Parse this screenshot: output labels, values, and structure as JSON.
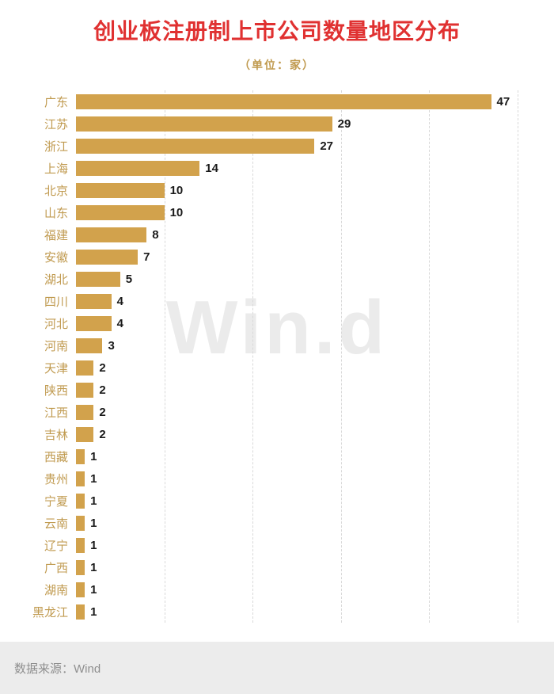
{
  "chart_data": {
    "type": "bar",
    "orientation": "horizontal",
    "title": "创业板注册制上市公司数量地区分布",
    "subtitle": "（单位：家）",
    "categories": [
      "广东",
      "江苏",
      "浙江",
      "上海",
      "北京",
      "山东",
      "福建",
      "安徽",
      "湖北",
      "四川",
      "河北",
      "河南",
      "天津",
      "陕西",
      "江西",
      "吉林",
      "西藏",
      "贵州",
      "宁夏",
      "云南",
      "辽宁",
      "广西",
      "湖南",
      "黑龙江"
    ],
    "values": [
      47,
      29,
      27,
      14,
      10,
      10,
      8,
      7,
      5,
      4,
      4,
      3,
      2,
      2,
      2,
      2,
      1,
      1,
      1,
      1,
      1,
      1,
      1,
      1
    ],
    "xlim": [
      0,
      50
    ],
    "gridline_interval": 10,
    "grid": "dashed-vertical",
    "legend": "none",
    "bar_color": "#d2a24c",
    "category_label_color": "#c09a4f",
    "value_label_color": "#1a1a1a",
    "title_color": "#e03131",
    "subtitle_color": "#c09a4f"
  },
  "watermark": {
    "text": "Win.d"
  },
  "footer": {
    "source_label": "数据来源：Wind"
  }
}
